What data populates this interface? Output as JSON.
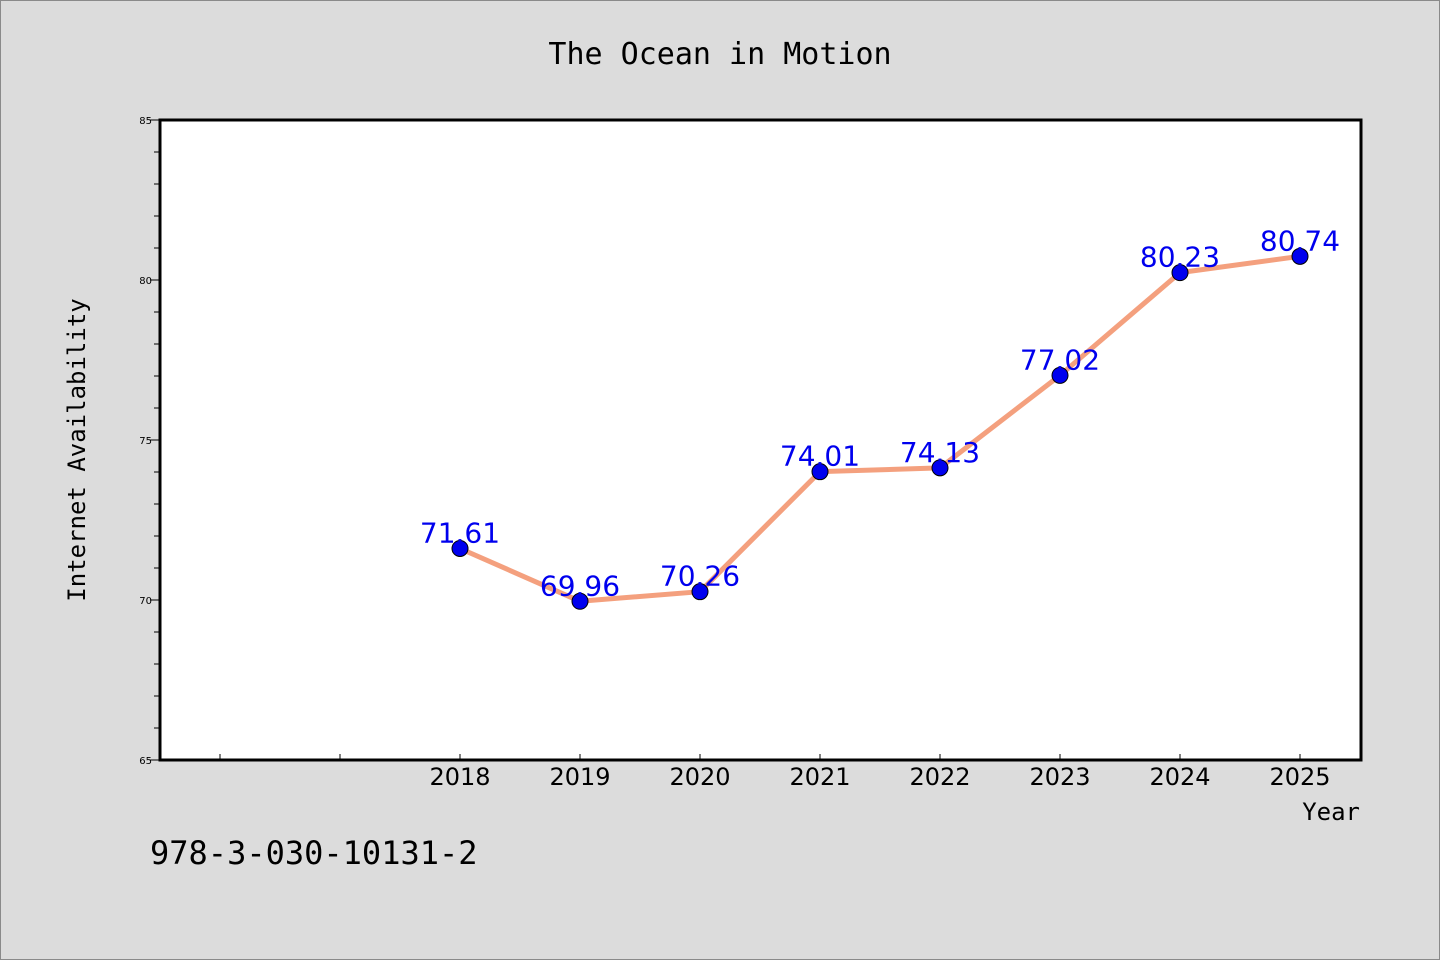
{
  "footer": {
    "isbn": "978-3-030-10131-2"
  },
  "colors": {
    "line": "#f4a07e",
    "marker": "#0000ee",
    "label": "#0000ee",
    "background": "#dcdcdc",
    "plot_bg": "#ffffff"
  },
  "chart_data": {
    "type": "line",
    "title": "The Ocean in Motion",
    "xlabel": "Year",
    "ylabel": "Internet Availability",
    "categories": [
      "2018",
      "2019",
      "2020",
      "2021",
      "2022",
      "2023",
      "2024",
      "2025"
    ],
    "series": [
      {
        "values": [
          71.61,
          69.96,
          70.26,
          74.01,
          74.13,
          77.02,
          80.23,
          80.74
        ],
        "labels": [
          "71.61",
          "69.96",
          "70.26",
          "74.01",
          "74.13",
          "77.02",
          "80.23",
          "80.74"
        ]
      }
    ],
    "ylim": [
      65,
      85
    ],
    "yticks": [
      65,
      70,
      75,
      80,
      85
    ],
    "yticks_minor_step": 1,
    "grid": false,
    "legend": "none"
  }
}
